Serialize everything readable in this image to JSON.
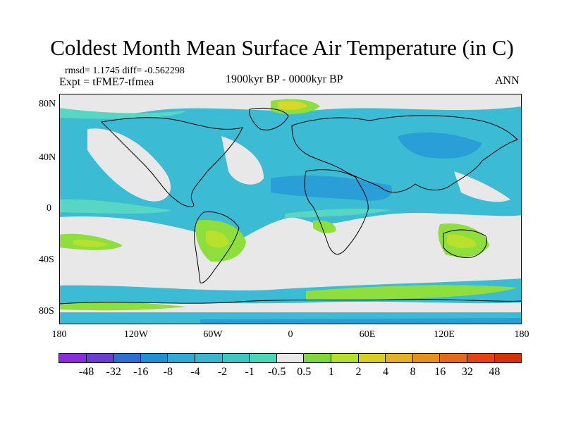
{
  "title": "Coldest Month Mean Surface Air Temperature (in C)",
  "stats": "rmsd= 1.1745 diff= -0.562298",
  "experiment": "Expt = tFME7-tfmea",
  "period": "1900kyr BP - 0000kyr BP",
  "season": "ANN",
  "lat_labels": [
    "80N",
    "40N",
    "0",
    "40S",
    "80S"
  ],
  "lon_labels": [
    "180",
    "120W",
    "60W",
    "0",
    "60E",
    "120E",
    "180"
  ],
  "colorbar": {
    "labels": [
      "-48",
      "-32",
      "-16",
      "-8",
      "-4",
      "-2",
      "-1",
      "-0.5",
      "0.5",
      "1",
      "2",
      "4",
      "8",
      "16",
      "32",
      "48"
    ],
    "colors": [
      "#8a2be2",
      "#6a3dd6",
      "#2a6fd6",
      "#1e90d8",
      "#2eaad8",
      "#35b8d0",
      "#3cc8c0",
      "#48d8b8",
      "#e8e8e8",
      "#7ed83a",
      "#b4e028",
      "#d8d020",
      "#e8b020",
      "#e89018",
      "#e86818",
      "#e84010",
      "#d83008"
    ]
  },
  "map_colors": {
    "ocean_blue": "#3bbcd4",
    "deep_blue": "#2a9ed6",
    "light_teal": "#58d6c4",
    "neutral": "#e8e8e8",
    "green": "#8ede3c",
    "yellow_green": "#b8e02c",
    "yellow": "#d8d828"
  }
}
